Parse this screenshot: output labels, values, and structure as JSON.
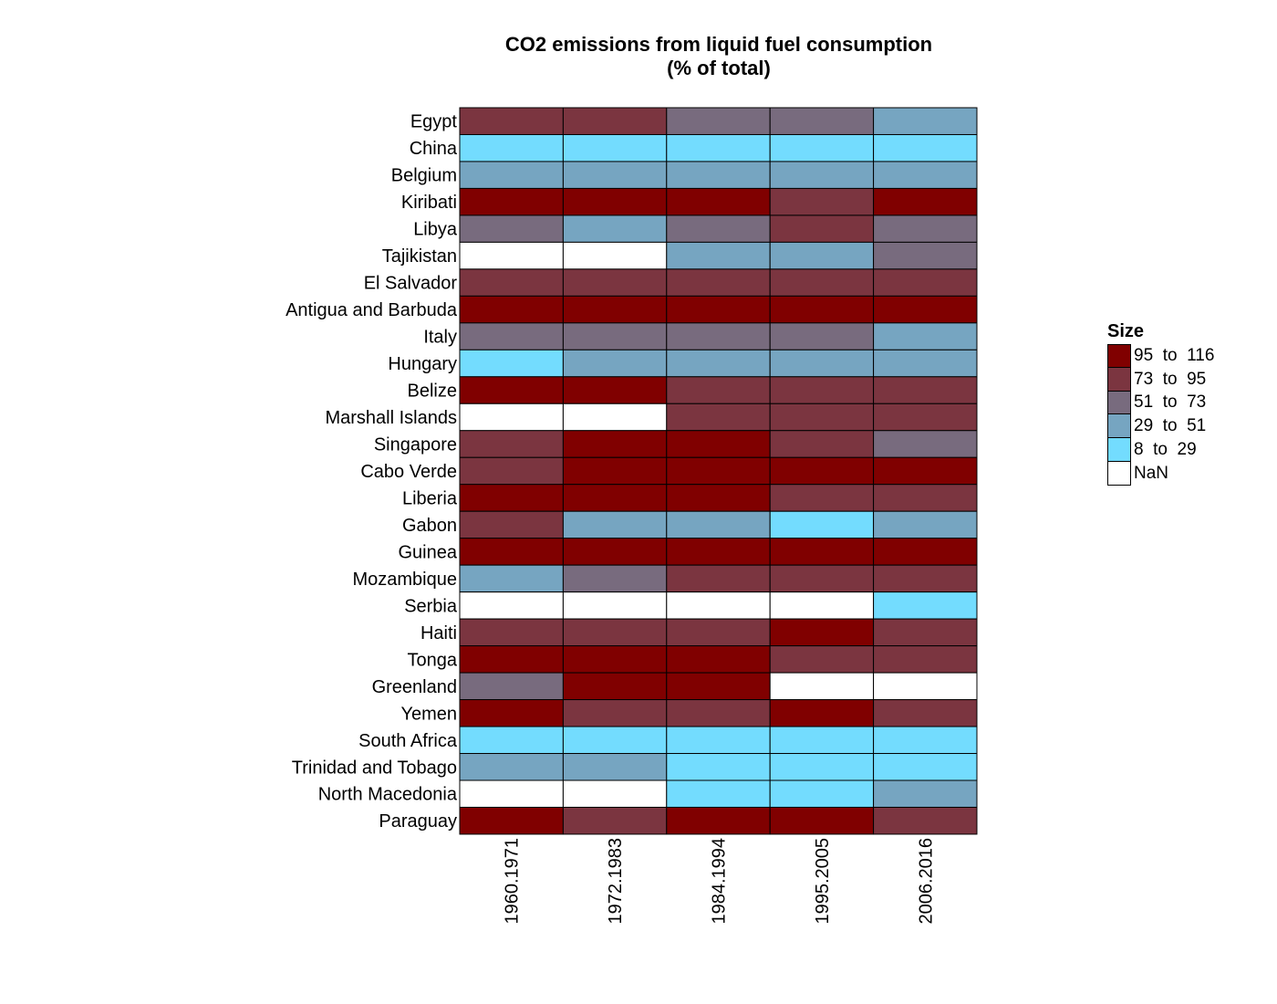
{
  "chart_data": {
    "type": "heatmap",
    "title": "CO2 emissions from liquid fuel consumption",
    "subtitle": "(% of total)",
    "x_categories": [
      "1960.1971",
      "1972.1983",
      "1984.1994",
      "1995.2005",
      "2006.2016"
    ],
    "y_categories": [
      "Egypt",
      "China",
      "Belgium",
      "Kiribati",
      "Libya",
      "Tajikistan",
      "El Salvador",
      "Antigua and Barbuda",
      "Italy",
      "Hungary",
      "Belize",
      "Marshall Islands",
      "Singapore",
      "Cabo Verde",
      "Liberia",
      "Gabon",
      "Guinea",
      "Mozambique",
      "Serbia",
      "Haiti",
      "Tonga",
      "Greenland",
      "Yemen",
      "South Africa",
      "Trinidad and Tobago",
      "North Macedonia",
      "Paraguay"
    ],
    "bins": [
      {
        "label": "95  to  116",
        "min": 95,
        "max": 116,
        "color": "#800000"
      },
      {
        "label": "73  to  95",
        "min": 73,
        "max": 95,
        "color": "#7b3540"
      },
      {
        "label": "51  to  73",
        "min": 51,
        "max": 73,
        "color": "#786b7e"
      },
      {
        "label": "29  to  51",
        "min": 29,
        "max": 51,
        "color": "#76a5c1"
      },
      {
        "label": "8  to  29",
        "min": 8,
        "max": 29,
        "color": "#73dcfe"
      },
      {
        "label": "NaN",
        "min": null,
        "max": null,
        "color": "#ffffff"
      }
    ],
    "values": [
      [
        85,
        85,
        62,
        62,
        40
      ],
      [
        20,
        20,
        20,
        20,
        20
      ],
      [
        40,
        40,
        40,
        40,
        40
      ],
      [
        100,
        100,
        100,
        85,
        100
      ],
      [
        62,
        40,
        62,
        85,
        62
      ],
      [
        null,
        null,
        40,
        40,
        62
      ],
      [
        85,
        85,
        85,
        85,
        85
      ],
      [
        100,
        100,
        100,
        100,
        100
      ],
      [
        62,
        62,
        62,
        62,
        40
      ],
      [
        20,
        40,
        40,
        40,
        40
      ],
      [
        100,
        100,
        85,
        85,
        85
      ],
      [
        null,
        null,
        85,
        85,
        85
      ],
      [
        85,
        100,
        100,
        85,
        62
      ],
      [
        85,
        100,
        100,
        100,
        100
      ],
      [
        100,
        100,
        100,
        85,
        85
      ],
      [
        85,
        40,
        40,
        20,
        40
      ],
      [
        100,
        100,
        100,
        100,
        100
      ],
      [
        40,
        62,
        85,
        85,
        85
      ],
      [
        null,
        null,
        null,
        null,
        20
      ],
      [
        85,
        85,
        85,
        100,
        85
      ],
      [
        100,
        100,
        100,
        85,
        85
      ],
      [
        62,
        100,
        100,
        null,
        null
      ],
      [
        100,
        85,
        85,
        100,
        85
      ],
      [
        20,
        20,
        20,
        20,
        20
      ],
      [
        40,
        40,
        20,
        20,
        20
      ],
      [
        null,
        null,
        20,
        20,
        40
      ],
      [
        100,
        85,
        100,
        100,
        85
      ]
    ],
    "legend": {
      "title": "Size",
      "position": "right"
    }
  }
}
